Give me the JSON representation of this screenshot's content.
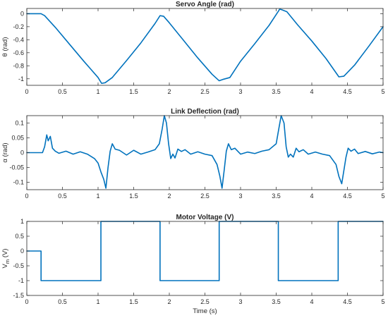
{
  "style": {
    "line_color": "#0072BD",
    "axis_color": "#262626"
  },
  "chart_data": [
    {
      "type": "line",
      "title": "Servo Angle (rad)",
      "ylabel": "θ (rad)",
      "xlabel": "",
      "xlim": [
        0,
        5
      ],
      "ylim": [
        -1.1,
        0.08
      ],
      "xticks": [
        0,
        0.5,
        1,
        1.5,
        2,
        2.5,
        3,
        3.5,
        4,
        4.5,
        5
      ],
      "xtick_labels": [
        "0",
        "0.5",
        "1",
        "1.5",
        "2",
        "2.5",
        "3",
        "3.5",
        "4",
        "4.5",
        "5"
      ],
      "yticks": [
        -1,
        -0.8,
        -0.6,
        -0.4,
        -0.2,
        0
      ],
      "ytick_labels": [
        "-1",
        "-0.8",
        "-0.6",
        "-0.4",
        "-0.2",
        "0"
      ],
      "grid": false,
      "series": [
        {
          "x": [
            0,
            0.2,
            0.25,
            0.4,
            0.6,
            0.8,
            1.0,
            1.05,
            1.1,
            1.2,
            1.4,
            1.6,
            1.8,
            1.87,
            1.92,
            2.0,
            2.2,
            2.4,
            2.6,
            2.7,
            2.75,
            2.85,
            3.0,
            3.2,
            3.4,
            3.55,
            3.58,
            3.65,
            3.8,
            4.0,
            4.2,
            4.38,
            4.45,
            4.6,
            4.8,
            5.0
          ],
          "y": [
            0,
            0,
            -0.03,
            -0.21,
            -0.47,
            -0.73,
            -0.98,
            -1.07,
            -1.06,
            -0.98,
            -0.72,
            -0.45,
            -0.15,
            -0.03,
            -0.04,
            -0.14,
            -0.41,
            -0.68,
            -0.93,
            -1.03,
            -1.01,
            -0.98,
            -0.73,
            -0.46,
            -0.18,
            0.07,
            0.06,
            0.03,
            -0.17,
            -0.42,
            -0.69,
            -0.97,
            -0.96,
            -0.79,
            -0.5,
            -0.2
          ]
        }
      ]
    },
    {
      "type": "line",
      "title": "Link Deflection (rad)",
      "ylabel": "α (rad)",
      "xlabel": "",
      "xlim": [
        0,
        5
      ],
      "ylim": [
        -0.125,
        0.125
      ],
      "xticks": [
        0,
        0.5,
        1,
        1.5,
        2,
        2.5,
        3,
        3.5,
        4,
        4.5,
        5
      ],
      "xtick_labels": [
        "0",
        "0.5",
        "1",
        "1.5",
        "2",
        "2.5",
        "3",
        "3.5",
        "4",
        "4.5",
        "5"
      ],
      "yticks": [
        -0.1,
        -0.05,
        0,
        0.05,
        0.1
      ],
      "ytick_labels": [
        "-0.1",
        "-0.05",
        "0",
        "0.05",
        "0.1"
      ],
      "grid": false,
      "series": [
        {
          "x": [
            0,
            0.22,
            0.25,
            0.28,
            0.3,
            0.33,
            0.36,
            0.4,
            0.45,
            0.55,
            0.65,
            0.75,
            0.85,
            0.95,
            1.0,
            1.04,
            1.08,
            1.11,
            1.14,
            1.17,
            1.2,
            1.24,
            1.3,
            1.4,
            1.5,
            1.6,
            1.7,
            1.8,
            1.86,
            1.9,
            1.93,
            1.96,
            1.99,
            2.02,
            2.05,
            2.08,
            2.12,
            2.17,
            2.22,
            2.3,
            2.4,
            2.5,
            2.6,
            2.67,
            2.71,
            2.74,
            2.77,
            2.8,
            2.83,
            2.87,
            2.92,
            3.0,
            3.1,
            3.2,
            3.3,
            3.4,
            3.5,
            3.54,
            3.57,
            3.61,
            3.64,
            3.67,
            3.7,
            3.74,
            3.78,
            3.82,
            3.88,
            3.95,
            4.05,
            4.15,
            4.25,
            4.34,
            4.38,
            4.42,
            4.45,
            4.48,
            4.51,
            4.55,
            4.6,
            4.65,
            4.75,
            4.85,
            4.95,
            5.0
          ],
          "y": [
            0,
            0,
            0.02,
            0.06,
            0.04,
            0.055,
            0.015,
            0.005,
            -0.002,
            0.005,
            -0.005,
            0.003,
            -0.005,
            -0.02,
            -0.035,
            -0.065,
            -0.09,
            -0.12,
            -0.05,
            0.005,
            0.03,
            0.012,
            0.008,
            -0.008,
            0.008,
            -0.005,
            0.002,
            0.01,
            0.03,
            0.08,
            0.125,
            0.1,
            0.03,
            -0.02,
            -0.005,
            -0.018,
            0.012,
            0.004,
            0.01,
            -0.005,
            0.003,
            -0.005,
            -0.01,
            -0.04,
            -0.08,
            -0.12,
            -0.06,
            0.005,
            0.03,
            0.01,
            0.015,
            -0.005,
            0.002,
            -0.003,
            0.005,
            0.01,
            0.03,
            0.085,
            0.125,
            0.1,
            0.02,
            -0.015,
            -0.005,
            -0.015,
            0.015,
            0.003,
            0.01,
            -0.005,
            0.002,
            -0.005,
            -0.01,
            -0.04,
            -0.08,
            -0.105,
            -0.06,
            -0.015,
            0.015,
            0.005,
            0.012,
            -0.003,
            0.004,
            -0.004,
            0.002,
            0
          ]
        }
      ]
    },
    {
      "type": "line",
      "title": "Motor Voltage (V)",
      "ylabel": "V",
      "ylabel_sub": "m",
      "ylabel_suffix": " (V)",
      "xlabel": "Time (s)",
      "xlim": [
        0,
        5
      ],
      "ylim": [
        -1.5,
        1
      ],
      "xticks": [
        0,
        0.5,
        1,
        1.5,
        2,
        2.5,
        3,
        3.5,
        4,
        4.5,
        5
      ],
      "xtick_labels": [
        "0",
        "0.5",
        "1",
        "1.5",
        "2",
        "2.5",
        "3",
        "3.5",
        "4",
        "4.5",
        "5"
      ],
      "yticks": [
        -1.5,
        -1,
        -0.5,
        0,
        0.5,
        1
      ],
      "ytick_labels": [
        "-1.5",
        "-1",
        "-0.5",
        "0",
        "0.5",
        "1"
      ],
      "grid": false,
      "series": [
        {
          "x": [
            0,
            0.2,
            0.2,
            1.04,
            1.04,
            1.87,
            1.87,
            2.7,
            2.7,
            3.53,
            3.53,
            4.37,
            4.37,
            5.0
          ],
          "y": [
            0,
            0,
            -1,
            -1,
            1,
            1,
            -1,
            -1,
            1,
            1,
            -1,
            -1,
            1,
            1
          ]
        }
      ]
    }
  ]
}
